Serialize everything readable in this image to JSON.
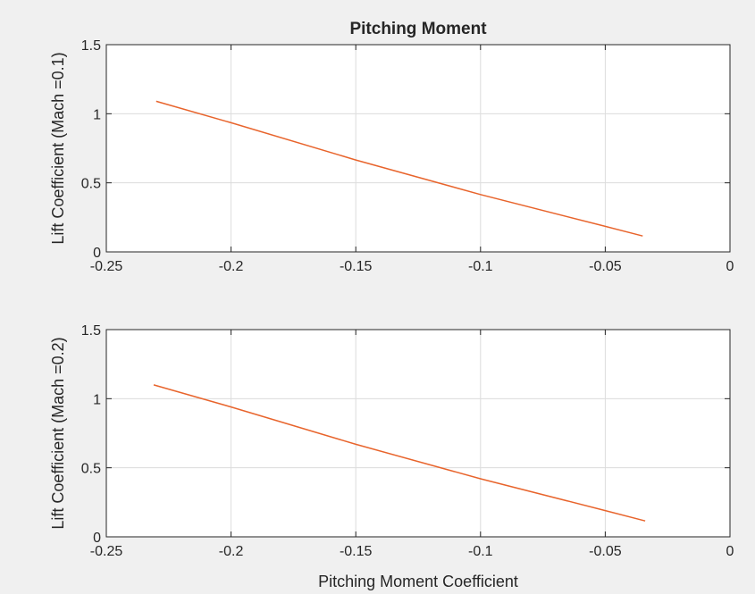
{
  "figure": {
    "background": "#f0f0f0",
    "axes_background": "#ffffff",
    "grid_color": "#dcdcdc",
    "line_color": "#e8642c"
  },
  "chart_data": [
    {
      "type": "line",
      "title": "Pitching Moment",
      "xlabel": "",
      "ylabel": "Lift Coefficient (Mach =0.1)",
      "xlim": [
        -0.25,
        0
      ],
      "ylim": [
        0,
        1.5
      ],
      "xticks": [
        -0.25,
        -0.2,
        -0.15,
        -0.1,
        -0.05,
        0
      ],
      "xtick_labels": [
        "-0.25",
        "-0.2",
        "-0.15",
        "-0.1",
        "-0.05",
        "0"
      ],
      "yticks": [
        0,
        0.5,
        1,
        1.5
      ],
      "ytick_labels": [
        "0",
        "0.5",
        "1",
        "1.5"
      ],
      "grid": true,
      "series": [
        {
          "x": [
            -0.23,
            -0.2,
            -0.15,
            -0.1,
            -0.05,
            -0.035
          ],
          "y": [
            1.09,
            0.935,
            0.665,
            0.415,
            0.185,
            0.115
          ]
        }
      ]
    },
    {
      "type": "line",
      "title": "",
      "xlabel": "Pitching Moment Coefficient",
      "ylabel": "Lift Coefficient (Mach =0.2)",
      "xlim": [
        -0.25,
        0
      ],
      "ylim": [
        0,
        1.5
      ],
      "xticks": [
        -0.25,
        -0.2,
        -0.15,
        -0.1,
        -0.05,
        0
      ],
      "xtick_labels": [
        "-0.25",
        "-0.2",
        "-0.15",
        "-0.1",
        "-0.05",
        "0"
      ],
      "yticks": [
        0,
        0.5,
        1,
        1.5
      ],
      "ytick_labels": [
        "0",
        "0.5",
        "1",
        "1.5"
      ],
      "grid": true,
      "series": [
        {
          "x": [
            -0.231,
            -0.2,
            -0.15,
            -0.1,
            -0.05,
            -0.034
          ],
          "y": [
            1.1,
            0.94,
            0.67,
            0.42,
            0.19,
            0.115
          ]
        }
      ]
    }
  ]
}
